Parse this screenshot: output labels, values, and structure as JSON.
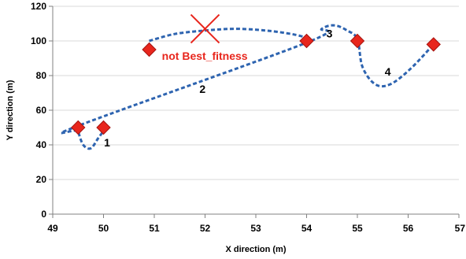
{
  "chart_data": {
    "type": "scatter",
    "xlabel": "X direction (m)",
    "ylabel": "Y direction (m)",
    "xlim": [
      49,
      57
    ],
    "ylim": [
      0,
      120
    ],
    "x_ticks": [
      "49",
      "50",
      "51",
      "52",
      "53",
      "54",
      "55",
      "56",
      "57"
    ],
    "y_ticks": [
      "0",
      "20",
      "40",
      "60",
      "80",
      "100",
      "120"
    ],
    "grid": "horizontal",
    "points": [
      {
        "x": 49.5,
        "y": 50
      },
      {
        "x": 50.0,
        "y": 50
      },
      {
        "x": 50.9,
        "y": 95
      },
      {
        "x": 54.0,
        "y": 100
      },
      {
        "x": 55.0,
        "y": 100
      },
      {
        "x": 56.5,
        "y": 98
      }
    ],
    "segment_labels": [
      {
        "text": "1",
        "x": 50.07,
        "y": 39
      },
      {
        "text": "2",
        "x": 51.95,
        "y": 70
      },
      {
        "text": "3",
        "x": 54.45,
        "y": 102
      },
      {
        "text": "4",
        "x": 55.6,
        "y": 80
      }
    ],
    "path_rejected": [
      [
        50.9,
        100
      ],
      [
        51.4,
        104
      ],
      [
        52.0,
        106
      ],
      [
        52.6,
        107
      ],
      [
        53.2,
        106
      ],
      [
        53.7,
        104
      ],
      [
        54.0,
        102
      ]
    ],
    "path_selected": [
      [
        50.05,
        50
      ],
      [
        49.9,
        44
      ],
      [
        49.75,
        38
      ],
      [
        49.6,
        40
      ],
      [
        49.5,
        48
      ],
      [
        49.5,
        51
      ],
      [
        54.0,
        99
      ],
      [
        54.3,
        107
      ],
      [
        54.55,
        109
      ],
      [
        54.8,
        106
      ],
      [
        55.0,
        101
      ],
      [
        55.1,
        85
      ],
      [
        55.35,
        75
      ],
      [
        55.65,
        75
      ],
      [
        56.05,
        84
      ],
      [
        56.5,
        98
      ]
    ],
    "annotation": {
      "text": "not Best_fitness",
      "x": 52.0,
      "y": 107,
      "text_x": 51.15,
      "text_y": 89
    },
    "colors": {
      "marker": "#e8261d",
      "marker_edge": "#a51410",
      "path": "#2e64b0",
      "annotation": "#e8261d",
      "grid": "#d9d9d9",
      "axis": "#808080"
    }
  }
}
